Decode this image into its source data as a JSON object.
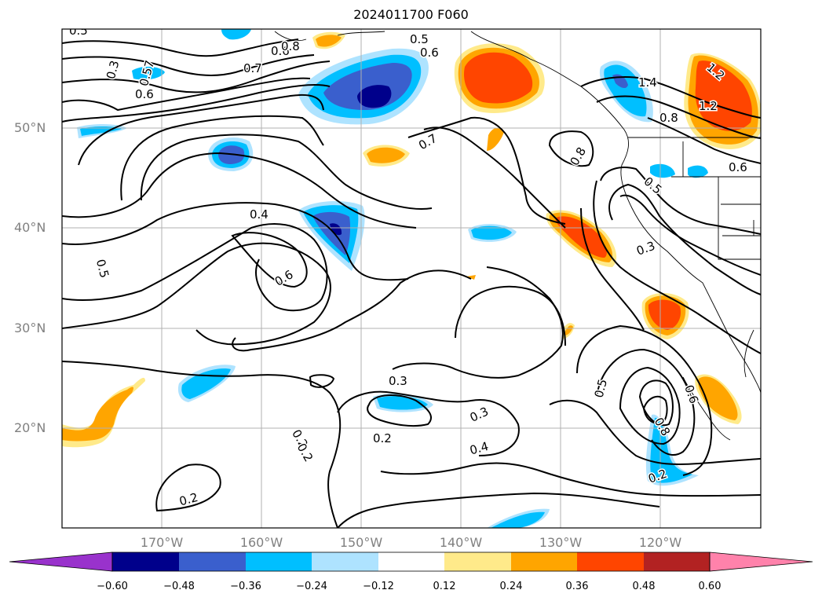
{
  "title": "2024011700 F060",
  "lat_labels": [
    "50°N",
    "40°N",
    "30°N",
    "20°N"
  ],
  "lon_labels": [
    "170°W",
    "160°W",
    "150°W",
    "140°W",
    "130°W",
    "120°W"
  ],
  "contour_labels": [
    "0.5",
    "0.6",
    "0.8",
    "0.7",
    "0.3",
    "0.57",
    "0.6",
    "0.5",
    "0.6",
    "0.7",
    "0.8",
    "1.4",
    "1.2",
    "1.2",
    "0.8",
    "0.6",
    "0.5",
    "0.4",
    "0.6",
    "0.5",
    "0.3",
    "0.3",
    "0.2",
    "0.2",
    "0.3",
    "0.4",
    "0.2",
    "0.5",
    "0.6",
    "0.8",
    "0.2",
    "0.2"
  ],
  "colorbar": {
    "ticks": [
      "−0.60",
      "−0.48",
      "−0.36",
      "−0.24",
      "−0.12",
      "0.12",
      "0.24",
      "0.36",
      "0.48",
      "0.60"
    ],
    "colors": [
      "#9932cc",
      "#00008b",
      "#3a5fcd",
      "#00bfff",
      "#aee3ff",
      "#ffffff",
      "#ffea8a",
      "#ffa500",
      "#ff4500",
      "#b22222",
      "#ff82ab"
    ]
  },
  "shading_colors": {
    "dark_blue": "#00008b",
    "mid_blue": "#3a5fcd",
    "cyan": "#00bfff",
    "light_blue": "#aee3ff",
    "light_yellow": "#ffea8a",
    "orange": "#ffa500",
    "red_orange": "#ff4500"
  }
}
